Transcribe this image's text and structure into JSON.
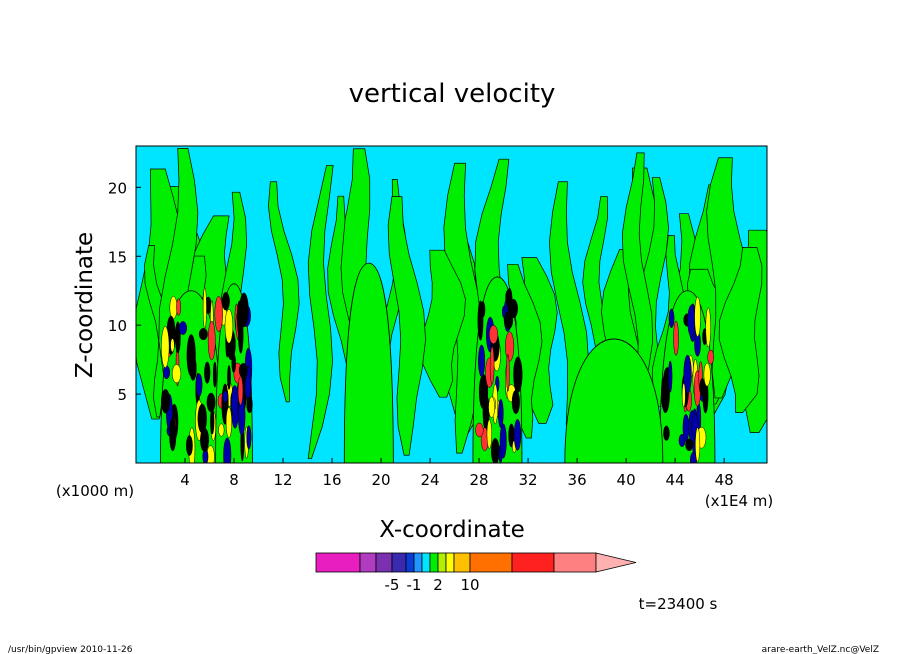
{
  "chart_data": {
    "type": "heatmap",
    "title": "vertical velocity",
    "xlabel": "X-coordinate",
    "ylabel": "Z-coordinate",
    "x_unit_left": "(x1000 m)",
    "x_unit_right": "(x1E4 m)",
    "xlim": [
      0,
      51.5
    ],
    "ylim": [
      0,
      23
    ],
    "x_ticks": [
      "4",
      "8",
      "12",
      "16",
      "20",
      "24",
      "28",
      "32",
      "36",
      "40",
      "44",
      "48"
    ],
    "x_tick_values": [
      4,
      8,
      12,
      16,
      20,
      24,
      28,
      32,
      36,
      40,
      44,
      48
    ],
    "y_ticks": [
      "5",
      "10",
      "15",
      "20"
    ],
    "y_tick_values": [
      5,
      10,
      15,
      20
    ],
    "background_color": "#00e5ff",
    "fill_colors": {
      "neutral": "#00e5ff",
      "weak_up": "#00ee00",
      "moderate_up": "#ffff00",
      "strong_down": "#0000aa",
      "strongest_down": "#000000",
      "strong_up": "#ff3333"
    },
    "updraft_plumes": [
      {
        "x_center": 4.5,
        "width": 5.0,
        "z_top": 12.5,
        "intensity": "strong"
      },
      {
        "x_center": 8.0,
        "width": 3.0,
        "z_top": 13.0,
        "intensity": "strong"
      },
      {
        "x_center": 29.5,
        "width": 4.0,
        "z_top": 13.5,
        "intensity": "strong"
      },
      {
        "x_center": 45.0,
        "width": 4.5,
        "z_top": 12.5,
        "intensity": "strong"
      },
      {
        "x_center": 19.0,
        "width": 4.0,
        "z_top": 14.5,
        "intensity": "weak"
      },
      {
        "x_center": 39.0,
        "width": 8.0,
        "z_top": 9.0,
        "intensity": "weak"
      }
    ],
    "colorbar": {
      "colors": [
        "#e81ec0",
        "#b03cc0",
        "#7a30b0",
        "#3a2ab0",
        "#0a3cd8",
        "#1e96ff",
        "#00e5ff",
        "#00ee00",
        "#b0f000",
        "#ffff00",
        "#ffc000",
        "#ff7000",
        "#ff2020",
        "#ff8080",
        "#ffb0b0"
      ],
      "tick_labels": [
        "-5",
        "-1",
        "2",
        "10"
      ],
      "tick_index": [
        3,
        5,
        8,
        11
      ]
    },
    "time_label": "t=23400 s"
  },
  "footer": {
    "left": "/usr/bin/gpview   2010-11-26",
    "right": "arare-earth_VelZ.nc@VelZ"
  }
}
